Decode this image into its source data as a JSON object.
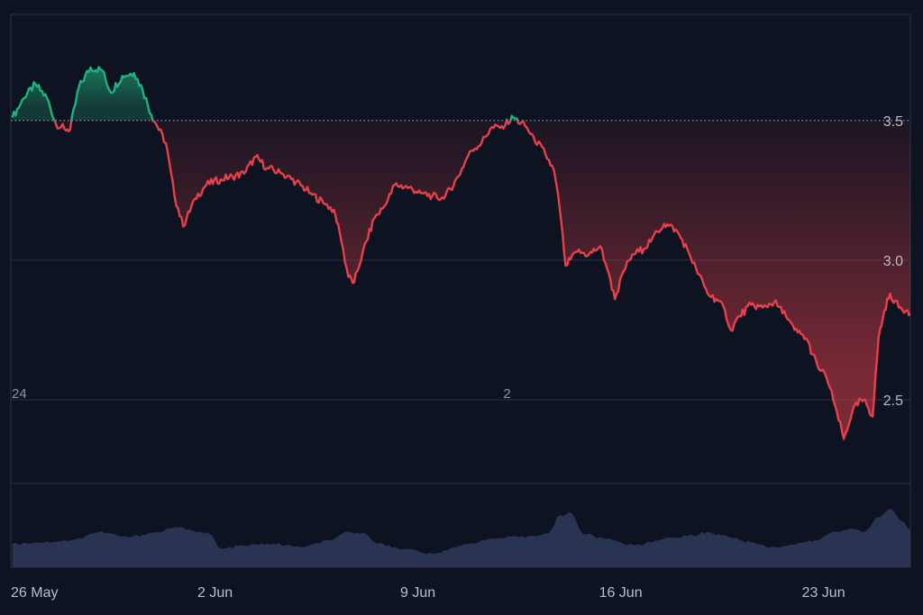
{
  "chart_data": {
    "type": "area",
    "baseline": 3.5,
    "colors": {
      "background": "#0d1320",
      "up_line": "#22b07d",
      "down_line": "#e8404b",
      "volume_fill": "#2a3352",
      "grid": "#2a3242",
      "baseline_dots": "#9aa0ad"
    },
    "y_ticks": [
      {
        "value": 3.5,
        "label": "3.5"
      },
      {
        "value": 3.0,
        "label": "3.0"
      },
      {
        "value": 2.5,
        "label": "2.5"
      }
    ],
    "x_ticks": [
      {
        "x": 0,
        "label": "26 May"
      },
      {
        "x": 7,
        "label": "2 Jun"
      },
      {
        "x": 14,
        "label": "9 Jun"
      },
      {
        "x": 21,
        "label": "16 Jun"
      },
      {
        "x": 28,
        "label": "23 Jun"
      }
    ],
    "ylim": [
      2.2,
      3.88
    ],
    "xlim": [
      -0.05,
      31.0
    ],
    "markers": [
      {
        "x": 0.05,
        "label": "24"
      },
      {
        "x": 16.95,
        "label": "2"
      }
    ],
    "price": [
      [
        0.0,
        3.51
      ],
      [
        0.4,
        3.58
      ],
      [
        0.8,
        3.63
      ],
      [
        1.2,
        3.58
      ],
      [
        1.5,
        3.49
      ],
      [
        1.8,
        3.47
      ],
      [
        2.0,
        3.47
      ],
      [
        2.3,
        3.62
      ],
      [
        2.7,
        3.69
      ],
      [
        3.1,
        3.68
      ],
      [
        3.4,
        3.6
      ],
      [
        3.8,
        3.66
      ],
      [
        4.2,
        3.67
      ],
      [
        4.5,
        3.61
      ],
      [
        4.8,
        3.52
      ],
      [
        5.0,
        3.48
      ],
      [
        5.3,
        3.42
      ],
      [
        5.6,
        3.23
      ],
      [
        5.9,
        3.12
      ],
      [
        6.3,
        3.22
      ],
      [
        6.7,
        3.27
      ],
      [
        7.2,
        3.29
      ],
      [
        7.6,
        3.3
      ],
      [
        8.0,
        3.31
      ],
      [
        8.4,
        3.37
      ],
      [
        8.8,
        3.33
      ],
      [
        9.3,
        3.31
      ],
      [
        9.8,
        3.28
      ],
      [
        10.3,
        3.24
      ],
      [
        10.8,
        3.2
      ],
      [
        11.1,
        3.18
      ],
      [
        11.3,
        3.1
      ],
      [
        11.6,
        2.94
      ],
      [
        11.8,
        2.92
      ],
      [
        12.1,
        3.03
      ],
      [
        12.5,
        3.15
      ],
      [
        12.9,
        3.2
      ],
      [
        13.2,
        3.27
      ],
      [
        13.7,
        3.26
      ],
      [
        14.1,
        3.24
      ],
      [
        14.5,
        3.23
      ],
      [
        14.9,
        3.22
      ],
      [
        15.4,
        3.3
      ],
      [
        15.8,
        3.39
      ],
      [
        16.2,
        3.42
      ],
      [
        16.5,
        3.47
      ],
      [
        16.9,
        3.48
      ],
      [
        17.3,
        3.51
      ],
      [
        17.7,
        3.48
      ],
      [
        18.0,
        3.44
      ],
      [
        18.4,
        3.38
      ],
      [
        18.7,
        3.32
      ],
      [
        18.9,
        3.18
      ],
      [
        19.1,
        2.98
      ],
      [
        19.5,
        3.03
      ],
      [
        19.9,
        3.02
      ],
      [
        20.3,
        3.05
      ],
      [
        20.6,
        2.95
      ],
      [
        20.8,
        2.86
      ],
      [
        21.1,
        2.96
      ],
      [
        21.4,
        3.02
      ],
      [
        21.8,
        3.04
      ],
      [
        22.1,
        3.08
      ],
      [
        22.5,
        3.13
      ],
      [
        22.9,
        3.11
      ],
      [
        23.3,
        3.04
      ],
      [
        23.6,
        2.97
      ],
      [
        24.0,
        2.88
      ],
      [
        24.3,
        2.86
      ],
      [
        24.6,
        2.82
      ],
      [
        24.8,
        2.75
      ],
      [
        25.1,
        2.8
      ],
      [
        25.5,
        2.84
      ],
      [
        25.9,
        2.83
      ],
      [
        26.3,
        2.85
      ],
      [
        26.7,
        2.8
      ],
      [
        27.0,
        2.75
      ],
      [
        27.4,
        2.72
      ],
      [
        27.8,
        2.62
      ],
      [
        28.1,
        2.58
      ],
      [
        28.4,
        2.48
      ],
      [
        28.7,
        2.36
      ],
      [
        29.0,
        2.46
      ],
      [
        29.3,
        2.5
      ],
      [
        29.5,
        2.48
      ],
      [
        29.7,
        2.44
      ],
      [
        29.9,
        2.72
      ],
      [
        30.1,
        2.82
      ],
      [
        30.3,
        2.88
      ],
      [
        30.6,
        2.83
      ],
      [
        30.9,
        2.82
      ],
      [
        31.0,
        2.81
      ]
    ],
    "volume_ylim": [
      0,
      1
    ],
    "volume": [
      [
        0.0,
        0.28
      ],
      [
        1.0,
        0.3
      ],
      [
        2.0,
        0.32
      ],
      [
        3.0,
        0.42
      ],
      [
        4.0,
        0.36
      ],
      [
        5.0,
        0.42
      ],
      [
        5.6,
        0.48
      ],
      [
        6.2,
        0.44
      ],
      [
        6.8,
        0.4
      ],
      [
        7.2,
        0.22
      ],
      [
        8.0,
        0.26
      ],
      [
        9.0,
        0.28
      ],
      [
        10.0,
        0.24
      ],
      [
        11.0,
        0.32
      ],
      [
        11.6,
        0.42
      ],
      [
        12.2,
        0.4
      ],
      [
        12.6,
        0.28
      ],
      [
        13.5,
        0.22
      ],
      [
        14.5,
        0.16
      ],
      [
        15.5,
        0.26
      ],
      [
        16.5,
        0.34
      ],
      [
        17.5,
        0.36
      ],
      [
        18.5,
        0.4
      ],
      [
        18.9,
        0.62
      ],
      [
        19.3,
        0.65
      ],
      [
        19.7,
        0.4
      ],
      [
        20.5,
        0.34
      ],
      [
        21.5,
        0.26
      ],
      [
        22.5,
        0.34
      ],
      [
        23.5,
        0.38
      ],
      [
        24.0,
        0.42
      ],
      [
        24.5,
        0.38
      ],
      [
        25.5,
        0.3
      ],
      [
        26.2,
        0.24
      ],
      [
        26.8,
        0.26
      ],
      [
        27.3,
        0.3
      ],
      [
        27.8,
        0.32
      ],
      [
        28.3,
        0.42
      ],
      [
        28.9,
        0.46
      ],
      [
        29.4,
        0.42
      ],
      [
        29.9,
        0.6
      ],
      [
        30.3,
        0.7
      ],
      [
        30.7,
        0.55
      ],
      [
        31.0,
        0.45
      ]
    ]
  }
}
